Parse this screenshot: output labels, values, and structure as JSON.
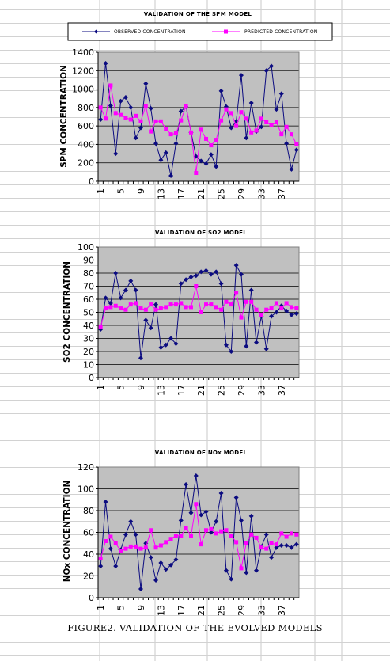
{
  "legend": {
    "observed": "OBSERVED CONCENTRATION",
    "predicted": "PREDICTED CONCENTRATION"
  },
  "colors": {
    "observed": "#0b0b80",
    "predicted": "#ff00ff",
    "plot_bg": "#c0c0c0",
    "grid": "#000000"
  },
  "caption": "FIGURE2. VALIDATION OF THE EVOLVED MODELS",
  "chart_data": [
    {
      "type": "line",
      "title": "VALIDATION OF THE SPM MODEL",
      "ylabel": "SPM CONCENTRATION",
      "xlabel": "",
      "ylim": [
        0,
        1400
      ],
      "yticks": [
        0,
        200,
        400,
        600,
        800,
        1000,
        1200,
        1400
      ],
      "xticks": [
        1,
        5,
        9,
        13,
        17,
        21,
        25,
        29,
        33,
        37
      ],
      "x": [
        1,
        2,
        3,
        4,
        5,
        6,
        7,
        8,
        9,
        10,
        11,
        12,
        13,
        14,
        15,
        16,
        17,
        18,
        19,
        20,
        21,
        22,
        23,
        24,
        25,
        26,
        27,
        28,
        29,
        30,
        31,
        32,
        33,
        34,
        35,
        36,
        37,
        38,
        39,
        40
      ],
      "grid": "horizontal",
      "series": [
        {
          "name": "OBSERVED CONCENTRATION",
          "marker": "diamond",
          "values": [
            670,
            1280,
            820,
            300,
            870,
            910,
            800,
            470,
            580,
            1060,
            790,
            410,
            230,
            310,
            60,
            410,
            760,
            810,
            530,
            270,
            220,
            190,
            290,
            160,
            980,
            810,
            580,
            650,
            1150,
            470,
            850,
            540,
            590,
            1200,
            1250,
            780,
            950,
            410,
            130,
            340
          ]
        },
        {
          "name": "PREDICTED CONCENTRATION",
          "marker": "square",
          "values": [
            800,
            680,
            1040,
            740,
            720,
            690,
            670,
            710,
            650,
            820,
            540,
            650,
            650,
            570,
            510,
            520,
            660,
            820,
            530,
            90,
            560,
            460,
            390,
            450,
            660,
            780,
            740,
            600,
            750,
            680,
            530,
            550,
            680,
            640,
            610,
            640,
            510,
            590,
            510,
            400
          ]
        }
      ]
    },
    {
      "type": "line",
      "title": "VALIDATION OF SO2 MODEL",
      "ylabel": "SO2 CONCENTRATION",
      "xlabel": "",
      "ylim": [
        0,
        100
      ],
      "yticks": [
        0,
        10,
        20,
        30,
        40,
        50,
        60,
        70,
        80,
        90,
        100
      ],
      "xticks": [
        1,
        5,
        9,
        13,
        17,
        21,
        25,
        29,
        33,
        37
      ],
      "x": [
        1,
        2,
        3,
        4,
        5,
        6,
        7,
        8,
        9,
        10,
        11,
        12,
        13,
        14,
        15,
        16,
        17,
        18,
        19,
        20,
        21,
        22,
        23,
        24,
        25,
        26,
        27,
        28,
        29,
        30,
        31,
        32,
        33,
        34,
        35,
        36,
        37,
        38,
        39,
        40
      ],
      "grid": "horizontal",
      "series": [
        {
          "name": "OBSERVED CONCENTRATION",
          "marker": "diamond",
          "values": [
            37,
            61,
            57,
            80,
            61,
            67,
            74,
            67,
            15,
            44,
            38,
            56,
            23,
            25,
            30,
            26,
            72,
            75,
            77,
            78,
            81,
            82,
            79,
            81,
            72,
            25,
            20,
            86,
            79,
            24,
            67,
            27,
            47,
            22,
            47,
            50,
            55,
            51,
            48,
            49
          ]
        },
        {
          "name": "PREDICTED CONCENTRATION",
          "marker": "square",
          "values": [
            39,
            53,
            54,
            55,
            53,
            52,
            56,
            57,
            53,
            52,
            56,
            52,
            53,
            54,
            56,
            56,
            57,
            54,
            54,
            70,
            50,
            56,
            56,
            54,
            52,
            58,
            56,
            65,
            46,
            58,
            58,
            52,
            48,
            52,
            53,
            57,
            53,
            57,
            54,
            53
          ]
        }
      ]
    },
    {
      "type": "line",
      "title": "VALIDATION OF NOx MODEL",
      "ylabel": "NOx CONCENTRATION",
      "xlabel": "",
      "ylim": [
        0,
        120
      ],
      "yticks": [
        0,
        20,
        40,
        60,
        80,
        100,
        120
      ],
      "xticks": [
        1,
        5,
        9,
        13,
        17,
        21,
        25,
        29,
        33,
        37
      ],
      "x": [
        1,
        2,
        3,
        4,
        5,
        6,
        7,
        8,
        9,
        10,
        11,
        12,
        13,
        14,
        15,
        16,
        17,
        18,
        19,
        20,
        21,
        22,
        23,
        24,
        25,
        26,
        27,
        28,
        29,
        30,
        31,
        32,
        33,
        34,
        35,
        36,
        37,
        38,
        39,
        40
      ],
      "grid": "horizontal",
      "series": [
        {
          "name": "OBSERVED CONCENTRATION",
          "marker": "diamond",
          "values": [
            29,
            88,
            45,
            29,
            44,
            58,
            70,
            58,
            8,
            50,
            37,
            16,
            32,
            26,
            30,
            35,
            71,
            104,
            78,
            112,
            76,
            79,
            60,
            70,
            96,
            25,
            17,
            92,
            71,
            23,
            75,
            25,
            47,
            58,
            37,
            46,
            48,
            48,
            46,
            49
          ]
        },
        {
          "name": "PREDICTED CONCENTRATION",
          "marker": "square",
          "values": [
            36,
            52,
            56,
            50,
            43,
            45,
            47,
            47,
            45,
            46,
            62,
            46,
            48,
            51,
            54,
            57,
            57,
            64,
            57,
            86,
            49,
            62,
            63,
            59,
            61,
            62,
            57,
            51,
            27,
            50,
            58,
            55,
            46,
            45,
            50,
            49,
            59,
            56,
            59,
            58
          ]
        }
      ]
    }
  ]
}
